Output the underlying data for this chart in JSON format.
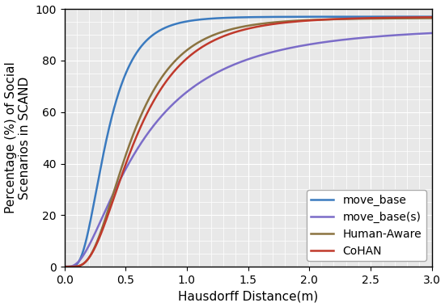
{
  "title": "",
  "xlabel": "Hausdorff Distance(m)",
  "ylabel": "Percentage (%) of Social\nScenarios in SCAND",
  "xlim": [
    0.0,
    3.0
  ],
  "ylim": [
    0,
    100
  ],
  "xticks": [
    0.0,
    0.5,
    1.0,
    1.5,
    2.0,
    2.5,
    3.0
  ],
  "yticks": [
    0,
    20,
    40,
    60,
    80,
    100
  ],
  "legend_loc": "lower right",
  "curves": [
    {
      "label": "move_base",
      "color": "#3a7abf",
      "lw": 1.8,
      "mu_log": -1.08,
      "sigma_log": 0.52,
      "scale": 97.0
    },
    {
      "label": "move_base(s)",
      "color": "#7b6cc8",
      "lw": 1.8,
      "mu_log": -0.5,
      "sigma_log": 0.82,
      "scale": 93.0
    },
    {
      "label": "Human-Aware",
      "color": "#8b7340",
      "lw": 1.8,
      "mu_log": -0.62,
      "sigma_log": 0.55,
      "scale": 96.5
    },
    {
      "label": "CoHAN",
      "color": "#c0392b",
      "lw": 1.8,
      "mu_log": -0.56,
      "sigma_log": 0.58,
      "scale": 97.0
    }
  ],
  "bg_color": "#e8e8e8",
  "figure_bg": "#ffffff",
  "font_size": 11,
  "legend_fontsize": 10,
  "grid_color": "#ffffff",
  "grid_minor_color": "#ffffff"
}
